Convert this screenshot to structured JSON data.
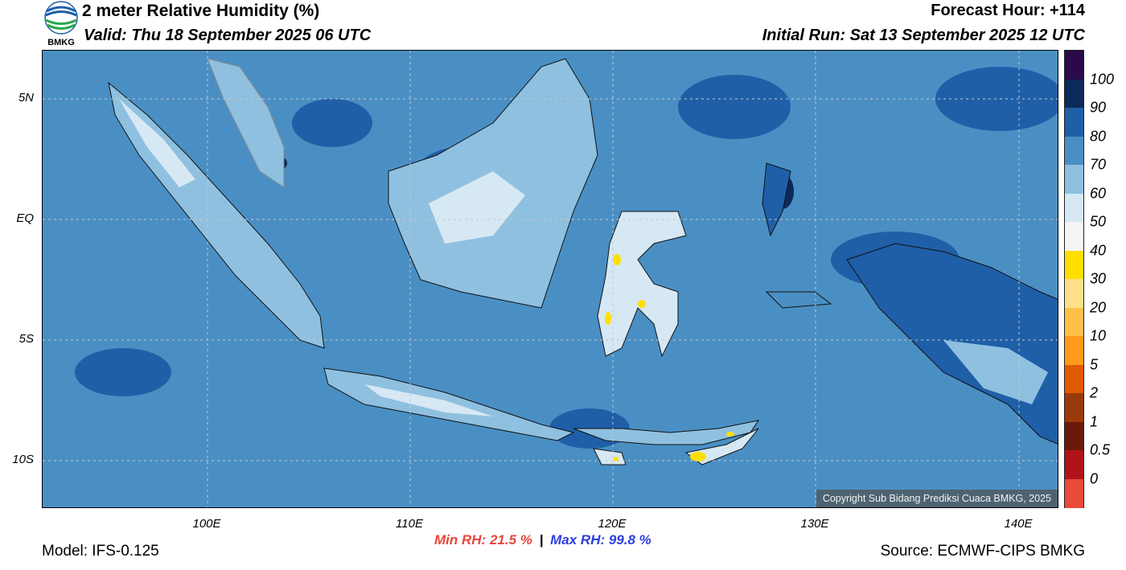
{
  "header": {
    "title": "2 meter Relative Humidity (%)",
    "valid": "Valid: Thu 18 September 2025 06 UTC",
    "forecast_hour": "Forecast Hour: +114",
    "initial_run": "Initial Run: Sat 13 September 2025 12 UTC",
    "logo_text": "BMKG"
  },
  "map": {
    "lat_labels": [
      "5N",
      "EQ",
      "5S",
      "10S"
    ],
    "lon_labels": [
      "100E",
      "110E",
      "120E",
      "130E",
      "140E"
    ],
    "copyright": "Copyright Sub Bidang Prediksi Cuaca BMKG, 2025"
  },
  "colorbar": {
    "labels": [
      "100",
      "90",
      "80",
      "70",
      "60",
      "50",
      "40",
      "30",
      "20",
      "10",
      "5",
      "2",
      "1",
      "0.5",
      "0"
    ],
    "colors": [
      "#2a0a4a",
      "#0b2a5a",
      "#1f5fa8",
      "#4a8fc4",
      "#8fc0e0",
      "#d6e8f4",
      "#f5f5f5",
      "#ffdf00",
      "#ffe08a",
      "#ffc04a",
      "#ff9a1a",
      "#e05a00",
      "#9a3a0a",
      "#6a1a0a",
      "#b0141a",
      "#ea4a3a"
    ]
  },
  "stats": {
    "min_label": "Min RH:",
    "min_value": "21.5 %",
    "max_label": "Max RH:",
    "max_value": "99.8 %",
    "separator": "|"
  },
  "footer": {
    "model": "Model: IFS-0.125",
    "source": "Source: ECMWF-CIPS BMKG"
  }
}
